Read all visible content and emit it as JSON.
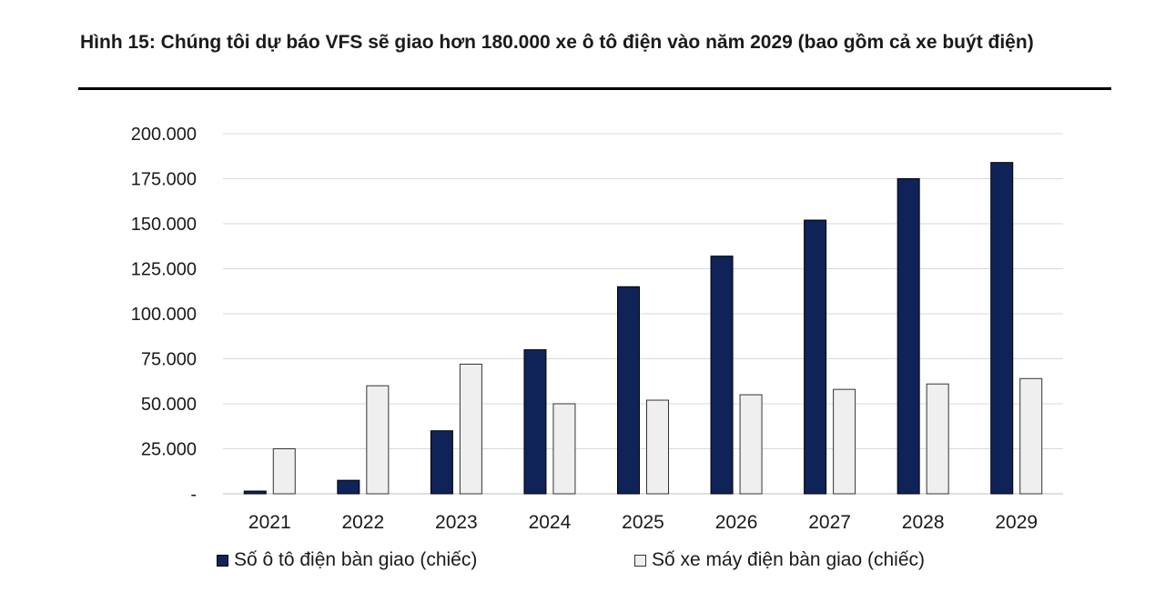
{
  "header": {
    "title": "Hình 15: Chúng tôi dự báo VFS sẽ giao hơn 180.000 xe ô tô điện vào năm 2029 (bao gồm cả xe buýt điện)"
  },
  "colors": {
    "series1": "#0f2358",
    "series2": "#efefef",
    "series2_border": "#333333",
    "grid": "#d9d9d9"
  },
  "chart_data": {
    "type": "bar",
    "title": "",
    "xlabel": "",
    "ylabel": "",
    "categories": [
      "2021",
      "2022",
      "2023",
      "2024",
      "2025",
      "2026",
      "2027",
      "2028",
      "2029"
    ],
    "series": [
      {
        "name": "Số ô tô điện bàn giao (chiếc)",
        "values": [
          1500,
          7500,
          35000,
          80000,
          115000,
          132000,
          152000,
          175000,
          184000
        ]
      },
      {
        "name": "Số xe máy điện bàn giao (chiếc)",
        "values": [
          25000,
          60000,
          72000,
          50000,
          52000,
          55000,
          58000,
          61000,
          64000
        ]
      }
    ],
    "ylim": [
      0,
      200000
    ],
    "yticks": [
      "-",
      "25.000",
      "50.000",
      "75.000",
      "100.000",
      "125.000",
      "150.000",
      "175.000",
      "200.000"
    ],
    "grid": true,
    "legend_position": "bottom"
  }
}
